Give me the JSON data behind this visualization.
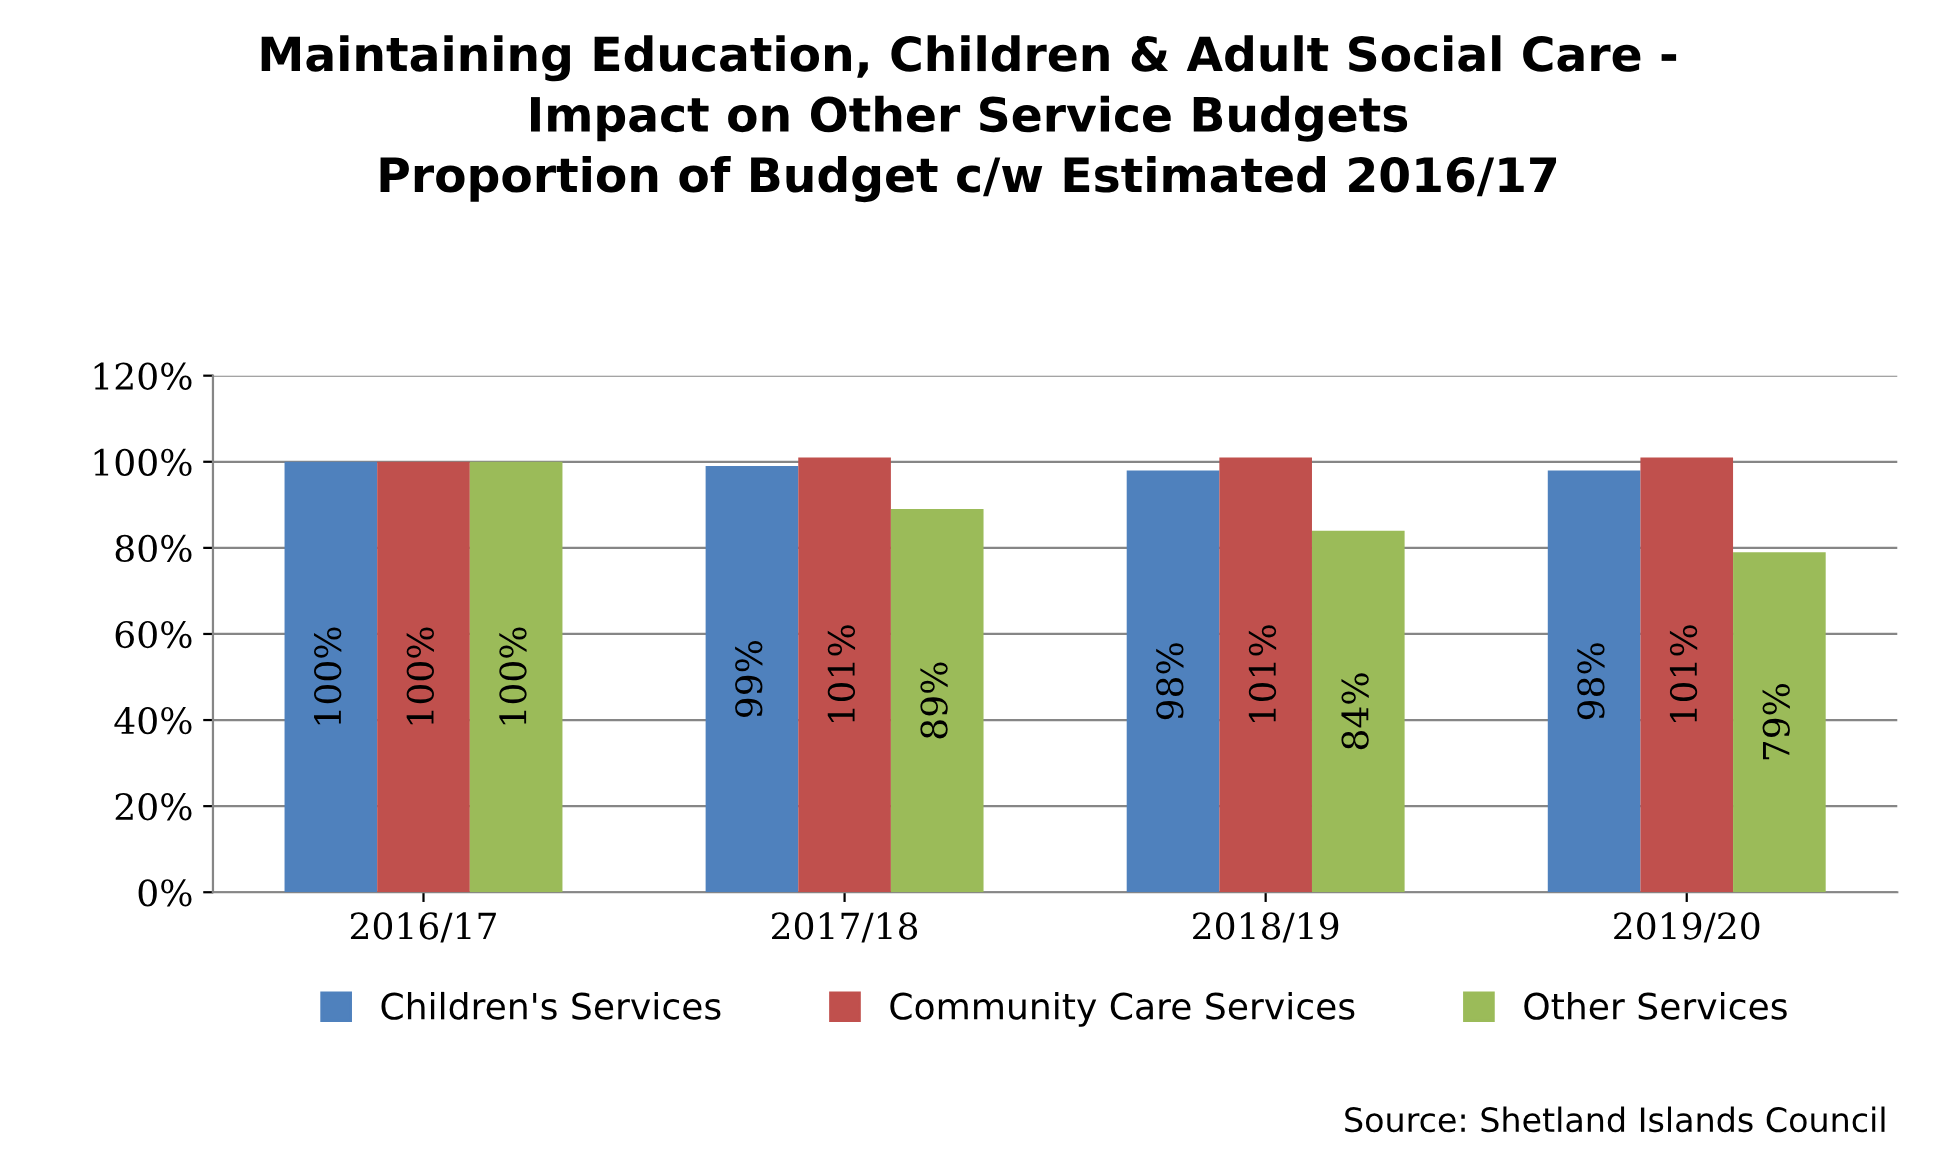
{
  "chart_data": {
    "type": "bar",
    "title": "Maintaining Education, Children & Adult Social Care -\nImpact on Other Service Budgets\nProportion of Budget c/w Estimated 2016/17",
    "categories": [
      "2016/17",
      "2017/18",
      "2018/19",
      "2019/20"
    ],
    "series": [
      {
        "name": "Children's Services",
        "color": "#4f81bd",
        "values": [
          100,
          99,
          98,
          98
        ],
        "value_labels": [
          "100%",
          "99%",
          "98%",
          "98%"
        ]
      },
      {
        "name": "Community Care Services",
        "color": "#c0504d",
        "values": [
          100,
          101,
          101,
          101
        ],
        "value_labels": [
          "100%",
          "101%",
          "101%",
          "101%"
        ]
      },
      {
        "name": "Other Services",
        "color": "#9bbb59",
        "values": [
          100,
          89,
          84,
          79
        ],
        "value_labels": [
          "100%",
          "89%",
          "84%",
          "79%"
        ]
      }
    ],
    "ylim": [
      0,
      120
    ],
    "yticks": [
      {
        "value": 0,
        "label": "0%"
      },
      {
        "value": 20,
        "label": "20%"
      },
      {
        "value": 40,
        "label": "40%"
      },
      {
        "value": 60,
        "label": "60%"
      },
      {
        "value": 80,
        "label": "80%"
      },
      {
        "value": 100,
        "label": "100%"
      },
      {
        "value": 120,
        "label": "120%"
      }
    ],
    "grid": "y",
    "legend": "bottom",
    "annotations": [
      "Source: Shetland Islands Council"
    ]
  }
}
